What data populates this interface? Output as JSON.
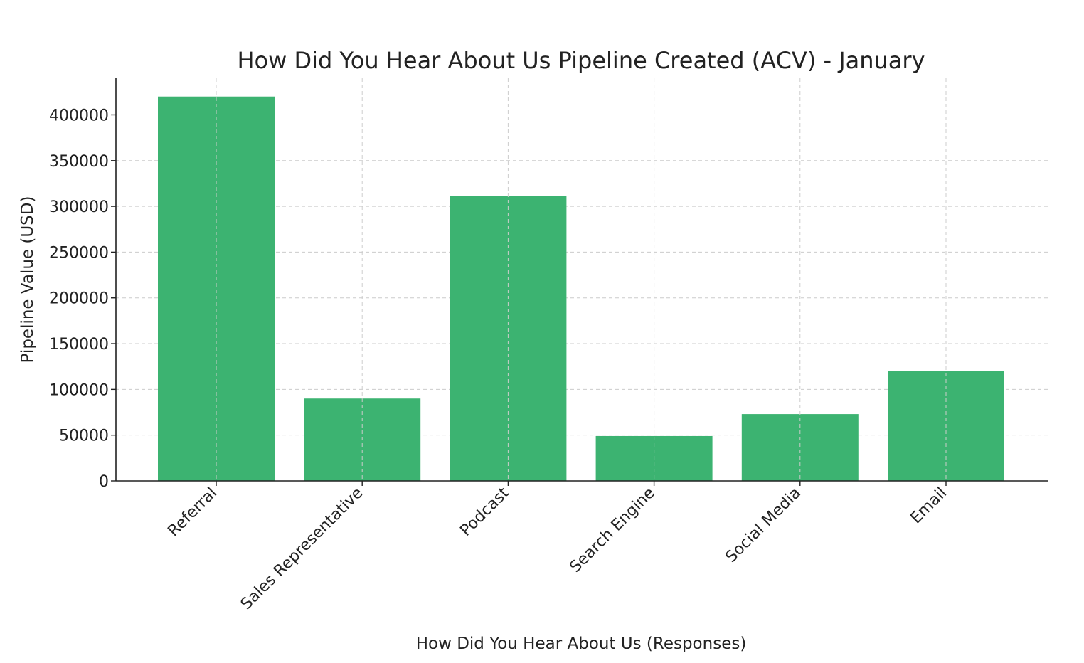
{
  "chart_data": {
    "type": "bar",
    "title": "How Did You Hear About Us Pipeline Created (ACV) - January",
    "xlabel": "How Did You Hear About Us (Responses)",
    "ylabel": "Pipeline Value (USD)",
    "categories": [
      "Referral",
      "Sales Representative",
      "Podcast",
      "Search Engine",
      "Social Media",
      "Email"
    ],
    "values": [
      420000,
      90000,
      311000,
      49000,
      73000,
      120000
    ],
    "ylim": [
      0,
      440000
    ],
    "yticks": [
      0,
      50000,
      100000,
      150000,
      200000,
      250000,
      300000,
      350000,
      400000
    ],
    "grid": true,
    "bar_color": "#3cb371"
  }
}
